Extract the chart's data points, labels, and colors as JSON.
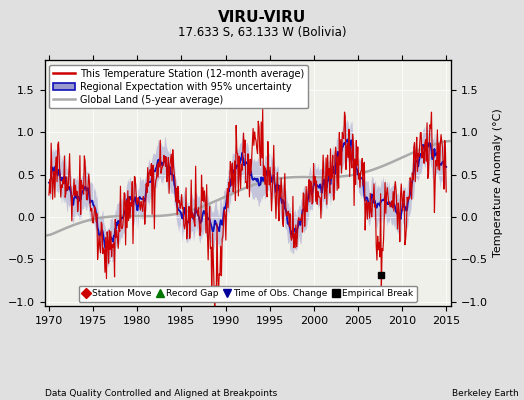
{
  "title": "VIRU-VIRU",
  "subtitle": "17.633 S, 63.133 W (Bolivia)",
  "xlabel_bottom": "Data Quality Controlled and Aligned at Breakpoints",
  "xlabel_right": "Berkeley Earth",
  "ylabel": "Temperature Anomaly (°C)",
  "xlim": [
    1969.5,
    2015.5
  ],
  "ylim": [
    -1.05,
    1.85
  ],
  "yticks": [
    -1,
    -0.5,
    0,
    0.5,
    1,
    1.5
  ],
  "xticks": [
    1970,
    1975,
    1980,
    1985,
    1990,
    1995,
    2000,
    2005,
    2010,
    2015
  ],
  "background_color": "#e0e0e0",
  "plot_background": "#f0f0eb",
  "red_line_color": "#cc0000",
  "blue_line_color": "#1111bb",
  "blue_fill_color": "#9999cc",
  "gray_line_color": "#aaaaaa",
  "empirical_break_x": 2007.6,
  "empirical_break_y": -0.68,
  "legend_items": [
    "This Temperature Station (12-month average)",
    "Regional Expectation with 95% uncertainty",
    "Global Land (5-year average)"
  ],
  "bottom_legend": [
    {
      "marker": "D",
      "color": "#cc0000",
      "label": "Station Move"
    },
    {
      "marker": "^",
      "color": "#007700",
      "label": "Record Gap"
    },
    {
      "marker": "v",
      "color": "#000099",
      "label": "Time of Obs. Change"
    },
    {
      "marker": "s",
      "color": "#000000",
      "label": "Empirical Break"
    }
  ]
}
